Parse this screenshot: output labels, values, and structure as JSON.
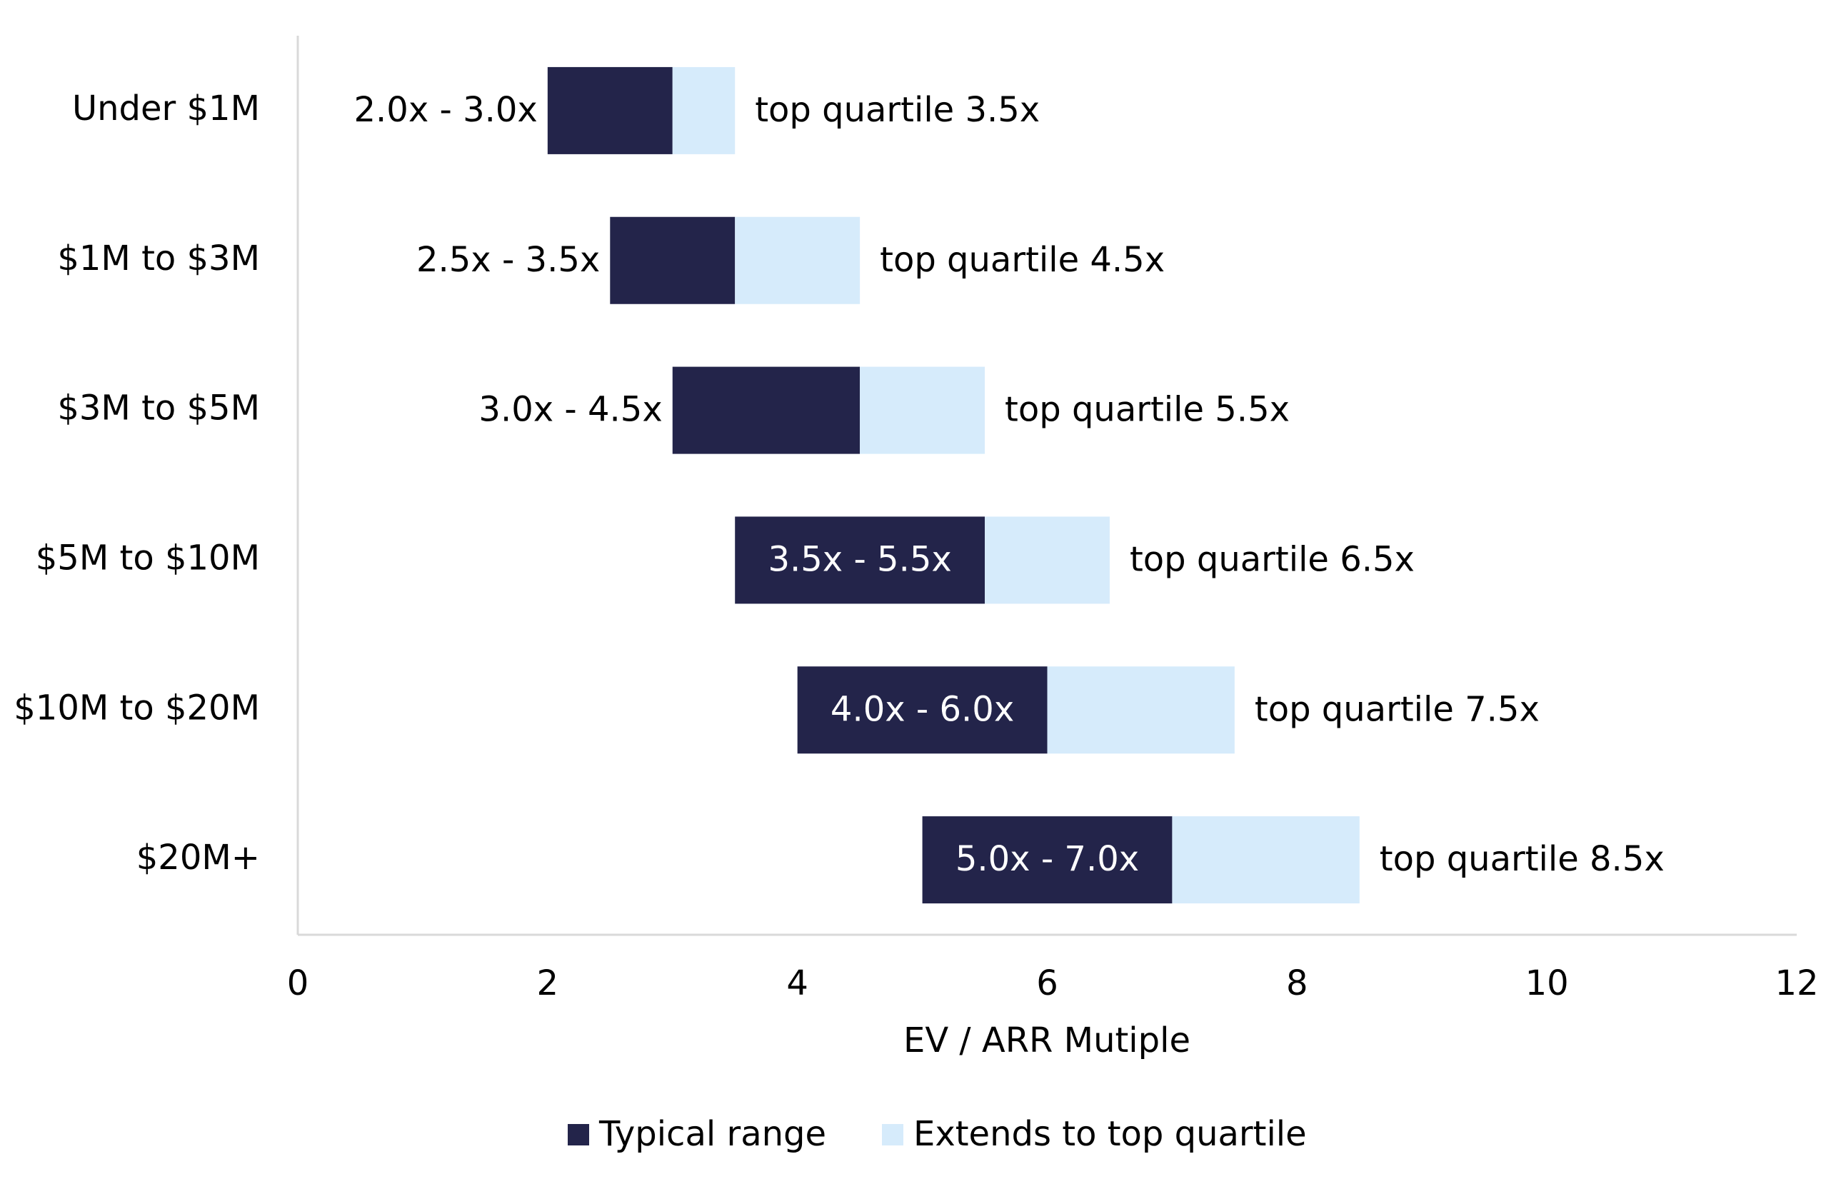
{
  "chart_data": {
    "type": "floating-bar",
    "categories": [
      "Under $1M",
      "$1M to $3M",
      "$3M to $5M",
      "$5M to $10M",
      "$10M to $20M",
      "$20M+"
    ],
    "series": [
      {
        "name": "Typical range",
        "color": "#23244a",
        "values": [
          [
            2,
            3
          ],
          [
            2.5,
            3.5
          ],
          [
            3,
            4.5
          ],
          [
            3.5,
            5.5
          ],
          [
            4,
            6
          ],
          [
            5,
            7
          ]
        ],
        "value_labels": [
          "2.0x - 3.0x",
          "2.5x - 3.5x",
          "3.0x - 4.5x",
          "3.5x - 5.5x",
          "4.0x - 6.0x",
          "5.0x - 7.0x"
        ]
      },
      {
        "name": "Extends to top quartile",
        "color": "#d6ebfb",
        "values": [
          3.5,
          4.5,
          5.5,
          6.5,
          7.5,
          8.5
        ],
        "value_labels": [
          "top quartile 3.5x",
          "top quartile 4.5x",
          "top quartile 5.5x",
          "top quartile 6.5x",
          "top quartile 7.5x",
          "top quartile 8.5x"
        ]
      }
    ],
    "x_label": "EV / ARR Mutiple",
    "xlim": [
      0,
      12
    ],
    "xticks": [
      0,
      2,
      4,
      6,
      8,
      10,
      12
    ],
    "legend": "bottom"
  }
}
